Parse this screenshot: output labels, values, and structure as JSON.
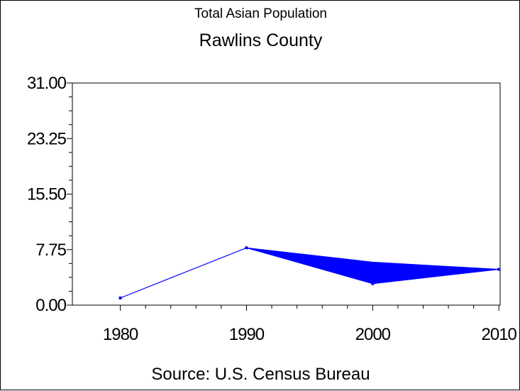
{
  "title": "Total Asian Population",
  "subtitle": "Rawlins County",
  "footnote": "Source: U.S. Census Bureau",
  "colors": {
    "series": "#0000ff",
    "axis": "#000000"
  },
  "chart_data": {
    "type": "line",
    "title": "Total Asian Population",
    "subtitle": "Rawlins County",
    "xlabel": "",
    "ylabel": "",
    "x": [
      1980,
      1990,
      2000,
      2010
    ],
    "x_tick_labels": [
      "1980",
      "1990",
      "2000",
      "2010"
    ],
    "y_tick_labels": [
      "0.00",
      "7.75",
      "15.50",
      "23.25",
      "31.00"
    ],
    "ylim": [
      0,
      31
    ],
    "series": [
      {
        "values": [
          1,
          8,
          3,
          5
        ],
        "upper": [
          1,
          8,
          6,
          5
        ]
      }
    ],
    "grid": false,
    "band_fill": true
  }
}
